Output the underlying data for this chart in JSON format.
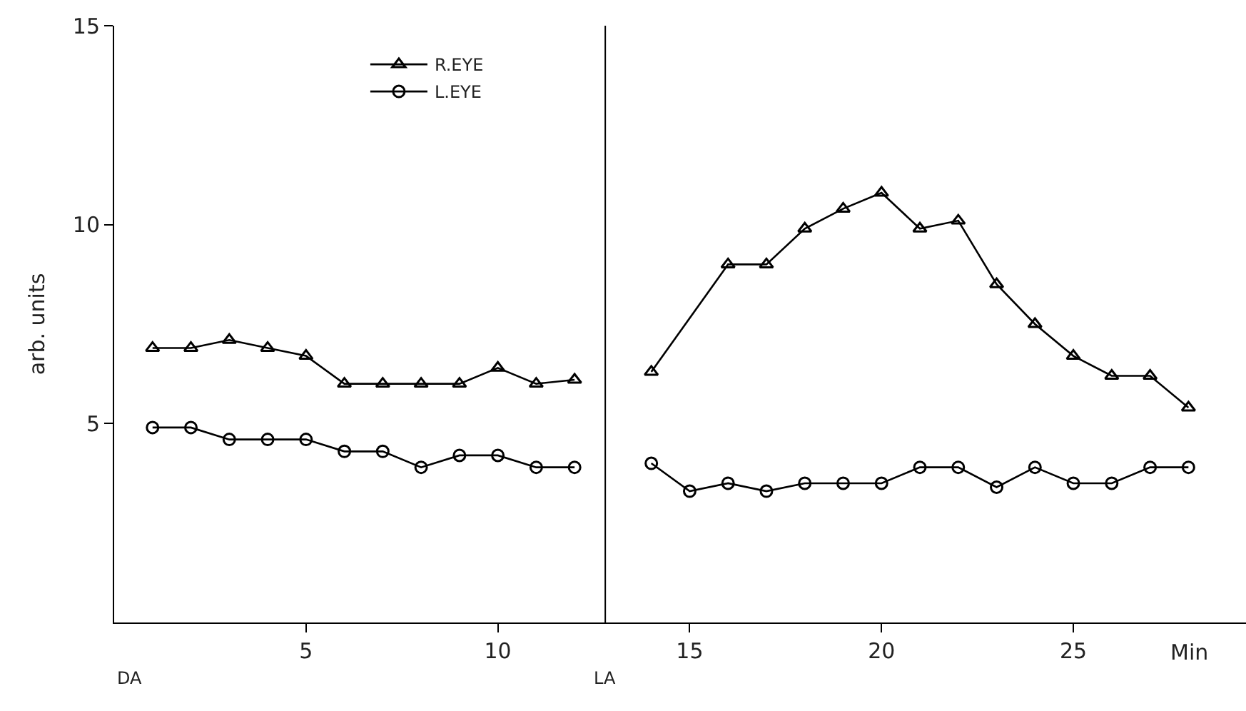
{
  "chart_data": {
    "type": "line",
    "xlabel": "Min",
    "ylabel": "arb. units",
    "xlim": [
      0,
      29.5
    ],
    "xticks": [
      5,
      10,
      15,
      20,
      25
    ],
    "ylim": [
      0,
      15
    ],
    "yticks": [
      5,
      10,
      15
    ],
    "legend": "top left",
    "series": [
      {
        "name": "R.EYE",
        "color": "#000000",
        "marker": "triangle",
        "x": [
          1,
          2,
          3,
          4,
          5,
          6,
          7,
          8,
          9,
          10,
          11,
          12,
          null,
          14,
          16,
          17,
          18,
          19,
          20,
          21,
          22,
          23,
          24,
          25,
          26,
          27,
          28
        ],
        "values": [
          6.9,
          6.9,
          7.1,
          6.9,
          6.7,
          6.0,
          6.0,
          6.0,
          6.0,
          6.4,
          6.0,
          6.1,
          null,
          6.3,
          9.0,
          9.0,
          9.9,
          10.4,
          10.8,
          9.9,
          10.1,
          8.5,
          7.5,
          6.7,
          6.2,
          6.2,
          5.4
        ]
      },
      {
        "name": "L.EYE",
        "color": "#000000",
        "marker": "circle",
        "x": [
          1,
          2,
          3,
          4,
          5,
          6,
          7,
          8,
          9,
          10,
          11,
          12,
          null,
          14,
          15,
          16,
          17,
          18,
          19,
          20,
          21,
          22,
          23,
          24,
          25,
          26,
          27,
          28
        ],
        "values": [
          4.9,
          4.9,
          4.6,
          4.6,
          4.6,
          4.3,
          4.3,
          3.9,
          4.2,
          4.2,
          3.9,
          3.9,
          null,
          4.0,
          3.3,
          3.5,
          3.3,
          3.5,
          3.5,
          3.5,
          3.9,
          3.9,
          3.4,
          3.9,
          3.5,
          3.5,
          3.9,
          3.9
        ]
      }
    ],
    "ref_lines": [
      {
        "axis": "x",
        "value": 12.8,
        "label": "LA",
        "color": "#000000"
      }
    ],
    "annotations": [
      "DA"
    ]
  }
}
